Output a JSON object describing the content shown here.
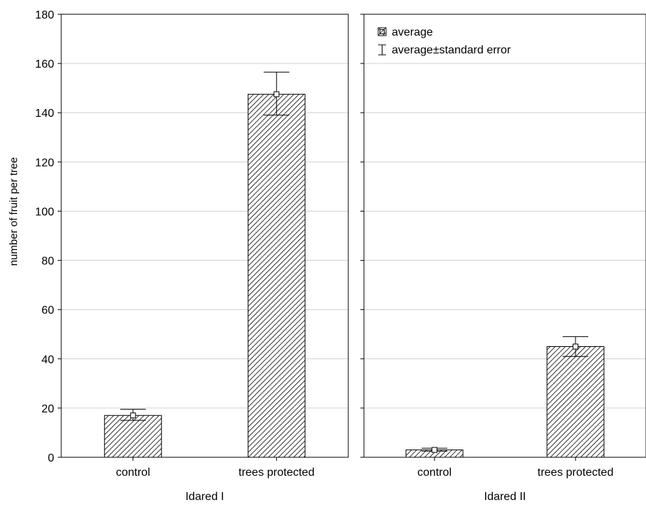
{
  "chart_data": {
    "type": "bar",
    "ylabel": "number of fruit per tree",
    "ylim": [
      0,
      180
    ],
    "yticks": [
      0,
      20,
      40,
      60,
      80,
      100,
      120,
      140,
      160,
      180
    ],
    "grid": true,
    "legend": {
      "placement": "top-left",
      "entries": [
        "average",
        "average±standard error"
      ]
    },
    "panels": [
      {
        "group": "Idared I",
        "categories": [
          "control",
          "trees protected"
        ],
        "values": [
          17,
          147.5
        ],
        "error_low": [
          15,
          139
        ],
        "error_high": [
          19.5,
          156.5
        ]
      },
      {
        "group": "Idared II",
        "categories": [
          "control",
          "trees protected"
        ],
        "values": [
          3,
          45
        ],
        "error_low": [
          2.5,
          41
        ],
        "error_high": [
          3.7,
          49
        ]
      }
    ]
  }
}
